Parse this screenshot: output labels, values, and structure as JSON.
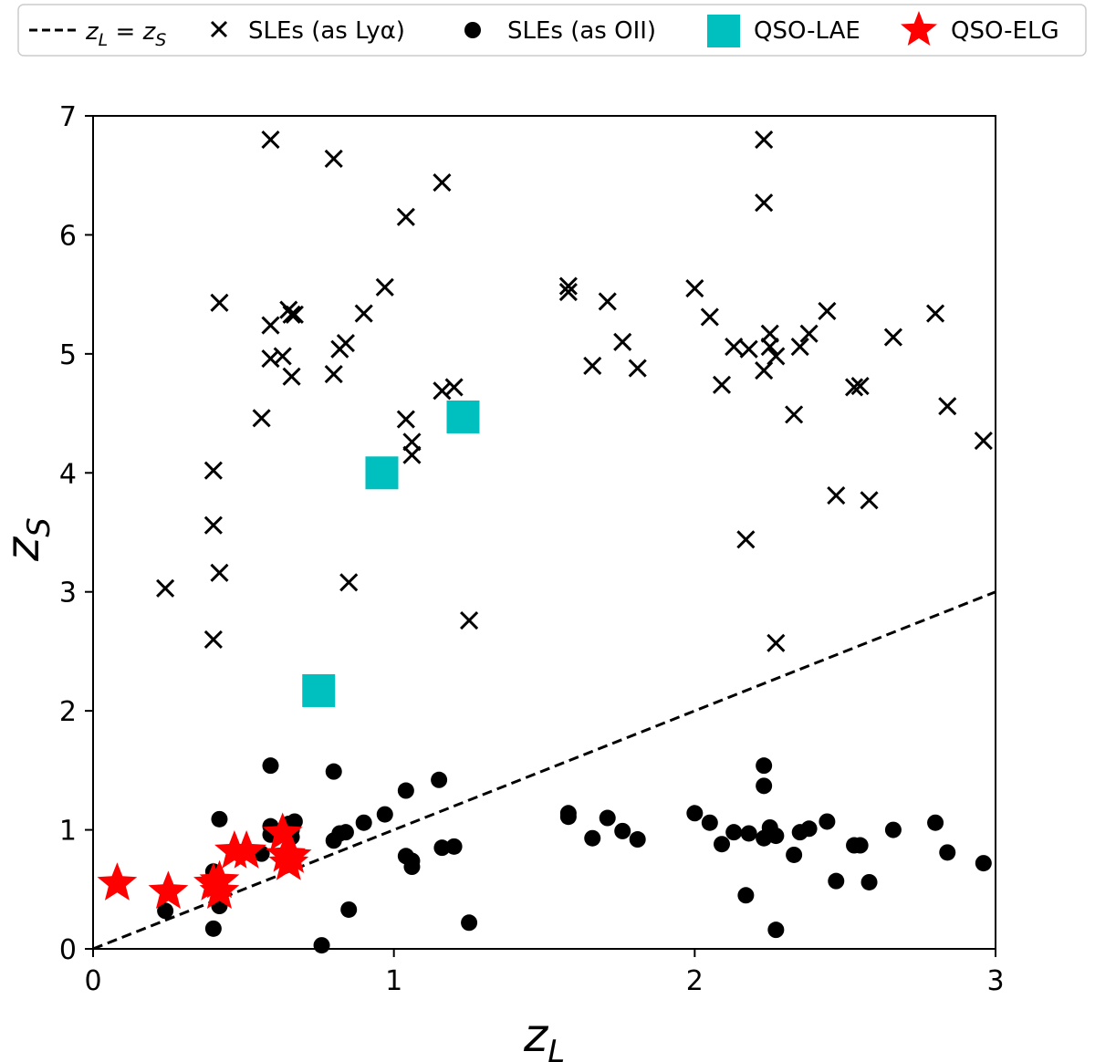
{
  "chart_data": {
    "type": "scatter",
    "xlabel": "z",
    "xlabel_sub": "L",
    "ylabel": "z",
    "ylabel_sub": "S",
    "xlim": [
      0,
      3
    ],
    "ylim": [
      0,
      7
    ],
    "xticks": [
      0,
      1,
      2,
      3
    ],
    "yticks": [
      0,
      1,
      2,
      3,
      4,
      5,
      6,
      7
    ],
    "grid": false,
    "legend_position": "top",
    "reference_line": {
      "label": "z_L = z_S",
      "label_main": "z",
      "label_sub_l": "L",
      "label_eq": " = ",
      "label_sub_s": "S",
      "style": "dashed",
      "x": [
        0,
        3
      ],
      "y": [
        0,
        3
      ]
    },
    "series": [
      {
        "name": "SLEs (as Lyα)",
        "marker": "x",
        "color": "#000000",
        "points": [
          [
            0.24,
            3.03
          ],
          [
            0.4,
            2.6
          ],
          [
            0.4,
            3.56
          ],
          [
            0.4,
            4.02
          ],
          [
            0.42,
            3.16
          ],
          [
            0.42,
            5.43
          ],
          [
            0.56,
            4.46
          ],
          [
            0.59,
            6.8
          ],
          [
            0.59,
            5.24
          ],
          [
            0.59,
            4.96
          ],
          [
            0.63,
            4.98
          ],
          [
            0.65,
            5.37
          ],
          [
            0.66,
            5.33
          ],
          [
            0.67,
            5.33
          ],
          [
            0.66,
            4.81
          ],
          [
            0.8,
            6.64
          ],
          [
            0.8,
            4.83
          ],
          [
            0.82,
            5.04
          ],
          [
            0.84,
            5.09
          ],
          [
            0.85,
            3.08
          ],
          [
            0.9,
            5.34
          ],
          [
            0.97,
            5.56
          ],
          [
            1.04,
            6.15
          ],
          [
            1.04,
            4.45
          ],
          [
            1.06,
            4.26
          ],
          [
            1.06,
            4.15
          ],
          [
            1.16,
            6.44
          ],
          [
            1.16,
            4.69
          ],
          [
            1.2,
            4.72
          ],
          [
            1.25,
            2.76
          ],
          [
            1.58,
            5.57
          ],
          [
            1.58,
            5.52
          ],
          [
            1.66,
            4.9
          ],
          [
            1.71,
            5.44
          ],
          [
            1.76,
            5.1
          ],
          [
            1.81,
            4.88
          ],
          [
            2.0,
            5.55
          ],
          [
            2.05,
            5.31
          ],
          [
            2.09,
            4.74
          ],
          [
            2.13,
            5.06
          ],
          [
            2.17,
            3.44
          ],
          [
            2.18,
            5.04
          ],
          [
            2.23,
            6.8
          ],
          [
            2.23,
            6.27
          ],
          [
            2.23,
            4.86
          ],
          [
            2.25,
            5.17
          ],
          [
            2.25,
            5.06
          ],
          [
            2.27,
            2.57
          ],
          [
            2.27,
            4.98
          ],
          [
            2.33,
            4.49
          ],
          [
            2.35,
            5.06
          ],
          [
            2.38,
            5.17
          ],
          [
            2.44,
            5.36
          ],
          [
            2.47,
            3.81
          ],
          [
            2.53,
            4.72
          ],
          [
            2.55,
            4.73
          ],
          [
            2.58,
            3.77
          ],
          [
            2.66,
            5.14
          ],
          [
            2.8,
            5.34
          ],
          [
            2.84,
            4.56
          ],
          [
            2.96,
            4.27
          ]
        ]
      },
      {
        "name": "SLEs (as OII)",
        "marker": "circle",
        "color": "#000000",
        "points": [
          [
            0.24,
            0.32
          ],
          [
            0.4,
            0.17
          ],
          [
            0.4,
            0.65
          ],
          [
            0.42,
            0.36
          ],
          [
            0.42,
            1.09
          ],
          [
            0.56,
            0.8
          ],
          [
            0.59,
            1.54
          ],
          [
            0.59,
            1.03
          ],
          [
            0.59,
            0.96
          ],
          [
            0.63,
            0.97
          ],
          [
            0.65,
            1.05
          ],
          [
            0.66,
            1.0
          ],
          [
            0.67,
            1.07
          ],
          [
            0.66,
            0.94
          ],
          [
            0.76,
            0.03
          ],
          [
            0.8,
            1.49
          ],
          [
            0.8,
            0.91
          ],
          [
            0.82,
            0.97
          ],
          [
            0.84,
            0.98
          ],
          [
            0.85,
            0.33
          ],
          [
            0.9,
            1.06
          ],
          [
            0.97,
            1.13
          ],
          [
            1.04,
            1.33
          ],
          [
            1.04,
            0.78
          ],
          [
            1.06,
            0.74
          ],
          [
            1.06,
            0.69
          ],
          [
            1.15,
            1.42
          ],
          [
            1.16,
            0.85
          ],
          [
            1.2,
            0.86
          ],
          [
            1.25,
            0.22
          ],
          [
            1.58,
            1.14
          ],
          [
            1.58,
            1.11
          ],
          [
            1.66,
            0.93
          ],
          [
            1.71,
            1.1
          ],
          [
            1.76,
            0.99
          ],
          [
            1.81,
            0.92
          ],
          [
            2.0,
            1.14
          ],
          [
            2.05,
            1.06
          ],
          [
            2.09,
            0.88
          ],
          [
            2.13,
            0.98
          ],
          [
            2.17,
            0.45
          ],
          [
            2.18,
            0.97
          ],
          [
            2.23,
            1.54
          ],
          [
            2.23,
            1.37
          ],
          [
            2.23,
            0.93
          ],
          [
            2.25,
            1.02
          ],
          [
            2.25,
            0.98
          ],
          [
            2.27,
            0.16
          ],
          [
            2.27,
            0.95
          ],
          [
            2.33,
            0.79
          ],
          [
            2.35,
            0.98
          ],
          [
            2.38,
            1.01
          ],
          [
            2.44,
            1.07
          ],
          [
            2.47,
            0.57
          ],
          [
            2.53,
            0.87
          ],
          [
            2.55,
            0.87
          ],
          [
            2.58,
            0.56
          ],
          [
            2.66,
            1.0
          ],
          [
            2.8,
            1.06
          ],
          [
            2.84,
            0.81
          ],
          [
            2.96,
            0.72
          ]
        ]
      },
      {
        "name": "QSO-LAE",
        "marker": "square",
        "color": "#00bfbf",
        "points": [
          [
            0.75,
            2.17
          ],
          [
            0.96,
            4.0
          ],
          [
            1.23,
            4.47
          ]
        ]
      },
      {
        "name": "QSO-ELG",
        "marker": "star",
        "color": "#ff0000",
        "points": [
          [
            0.08,
            0.55
          ],
          [
            0.25,
            0.48
          ],
          [
            0.4,
            0.55
          ],
          [
            0.42,
            0.57
          ],
          [
            0.42,
            0.48
          ],
          [
            0.47,
            0.82
          ],
          [
            0.51,
            0.82
          ],
          [
            0.63,
            0.97
          ],
          [
            0.64,
            0.79
          ],
          [
            0.65,
            0.72
          ],
          [
            0.66,
            0.78
          ]
        ]
      }
    ]
  }
}
